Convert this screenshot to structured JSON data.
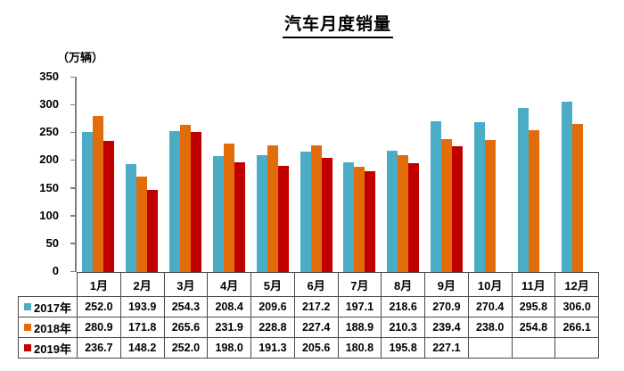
{
  "title": "汽车月度销量",
  "y_axis": {
    "unit_label": "（万辆）",
    "ticks": [
      350,
      300,
      250,
      200,
      150,
      100,
      50,
      0
    ],
    "max": 350,
    "axis_color": "#7f7f7f"
  },
  "table": {
    "border_color": "#4a4a4a"
  },
  "chart_data": {
    "type": "bar",
    "title": "汽车月度销量",
    "ylabel": "（万辆）",
    "ylim": [
      0,
      350
    ],
    "grid": false,
    "legend_position": "table-left",
    "categories": [
      "1月",
      "2月",
      "3月",
      "4月",
      "5月",
      "6月",
      "7月",
      "8月",
      "9月",
      "10月",
      "11月",
      "12月"
    ],
    "series": [
      {
        "name": "2017年",
        "color": "#4BACC6",
        "values": [
          252.0,
          193.9,
          254.3,
          208.4,
          209.6,
          217.2,
          197.1,
          218.6,
          270.9,
          270.4,
          295.8,
          306.0
        ]
      },
      {
        "name": "2018年",
        "color": "#E36C0A",
        "values": [
          280.9,
          171.8,
          265.6,
          231.9,
          228.8,
          227.4,
          188.9,
          210.3,
          239.4,
          238.0,
          254.8,
          266.1
        ]
      },
      {
        "name": "2019年",
        "color": "#C00000",
        "values": [
          236.7,
          148.2,
          252.0,
          198.0,
          191.3,
          205.6,
          180.8,
          195.8,
          227.1,
          null,
          null,
          null
        ]
      }
    ]
  }
}
